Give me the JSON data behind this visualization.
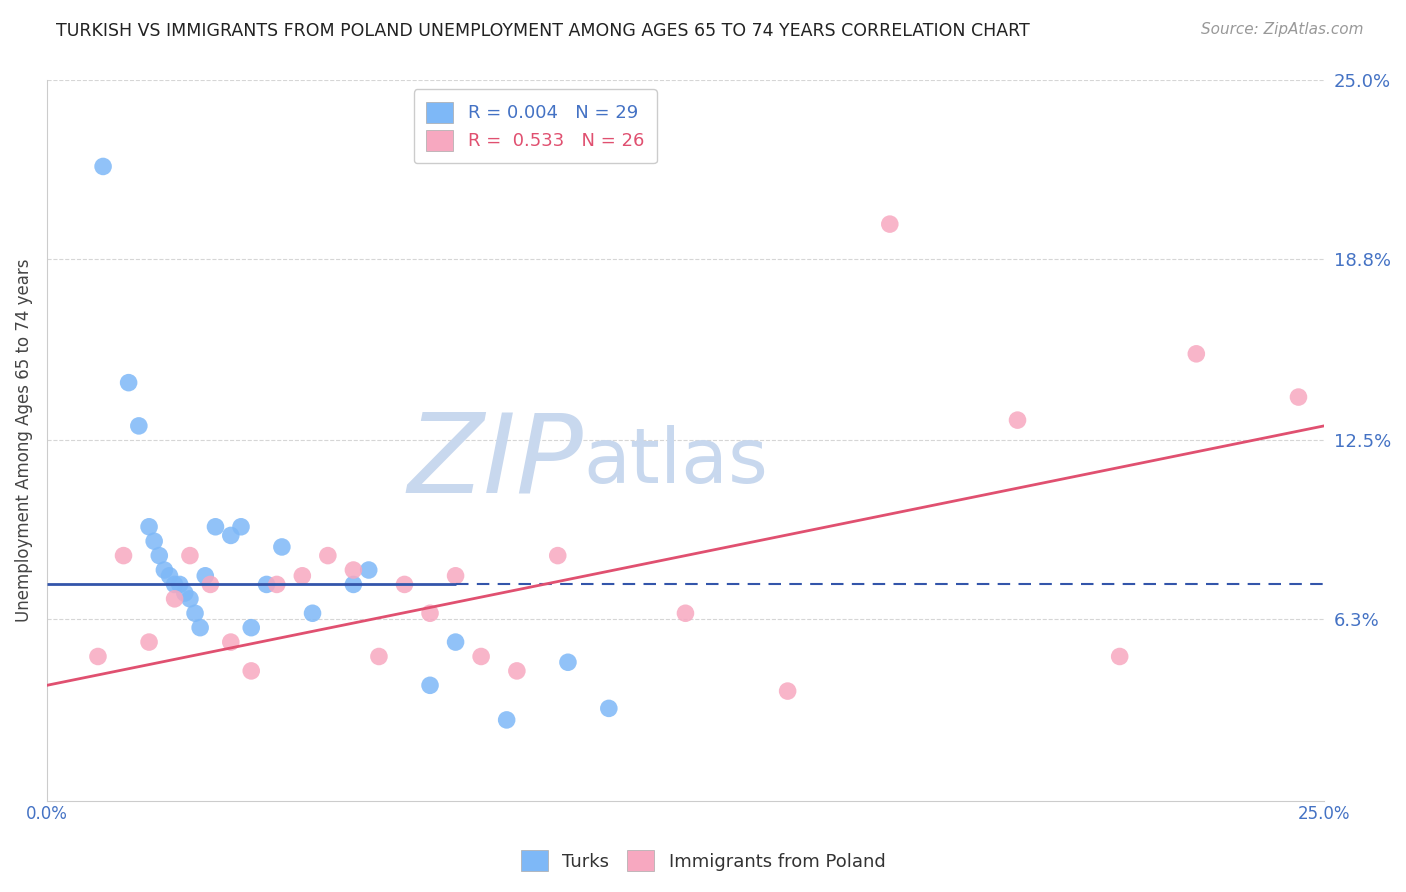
{
  "title": "TURKISH VS IMMIGRANTS FROM POLAND UNEMPLOYMENT AMONG AGES 65 TO 74 YEARS CORRELATION CHART",
  "source": "Source: ZipAtlas.com",
  "ylabel": "Unemployment Among Ages 65 to 74 years",
  "xmin": 0.0,
  "xmax": 25.0,
  "ymin": 0.0,
  "ymax": 25.0,
  "yticks": [
    6.3,
    12.5,
    18.8,
    25.0
  ],
  "ytick_labels": [
    "6.3%",
    "12.5%",
    "18.8%",
    "25.0%"
  ],
  "turks_color": "#7eb8f7",
  "poland_color": "#f7a8c0",
  "turks_line_color": "#3355aa",
  "poland_line_color": "#e05070",
  "watermark_zip": "ZIP",
  "watermark_atlas": "atlas",
  "watermark_color_zip": "#c8d8ee",
  "watermark_color_atlas": "#c8d8ee",
  "turks_x": [
    1.1,
    1.6,
    1.8,
    2.0,
    2.1,
    2.2,
    2.3,
    2.4,
    2.5,
    2.6,
    2.7,
    2.8,
    2.9,
    3.0,
    3.1,
    3.3,
    3.6,
    3.8,
    4.0,
    4.3,
    4.6,
    5.2,
    6.0,
    6.3,
    7.5,
    8.0,
    9.0,
    10.2,
    11.0
  ],
  "turks_y": [
    22.0,
    14.5,
    13.0,
    9.5,
    9.0,
    8.5,
    8.0,
    7.8,
    7.5,
    7.5,
    7.2,
    7.0,
    6.5,
    6.0,
    7.8,
    9.5,
    9.2,
    9.5,
    6.0,
    7.5,
    8.8,
    6.5,
    7.5,
    8.0,
    4.0,
    5.5,
    2.8,
    4.8,
    3.2
  ],
  "poland_x": [
    1.0,
    1.5,
    2.0,
    2.5,
    2.8,
    3.2,
    3.6,
    4.0,
    4.5,
    5.0,
    5.5,
    6.0,
    6.5,
    7.0,
    7.5,
    8.0,
    8.5,
    9.2,
    10.0,
    12.5,
    14.5,
    16.5,
    19.0,
    21.0,
    22.5,
    24.5
  ],
  "poland_y": [
    5.0,
    8.5,
    5.5,
    7.0,
    8.5,
    7.5,
    5.5,
    4.5,
    7.5,
    7.8,
    8.5,
    8.0,
    5.0,
    7.5,
    6.5,
    7.8,
    5.0,
    4.5,
    8.5,
    6.5,
    3.8,
    20.0,
    13.2,
    5.0,
    15.5,
    14.0
  ],
  "turks_R": 0.004,
  "turks_N": 29,
  "poland_R": 0.533,
  "poland_N": 26,
  "turks_line_y0": 7.5,
  "turks_line_y1": 7.5,
  "poland_line_y0": 4.0,
  "poland_line_y1": 13.0,
  "turks_solid_end_x": 8.0,
  "background_color": "#ffffff",
  "grid_color": "#cccccc"
}
